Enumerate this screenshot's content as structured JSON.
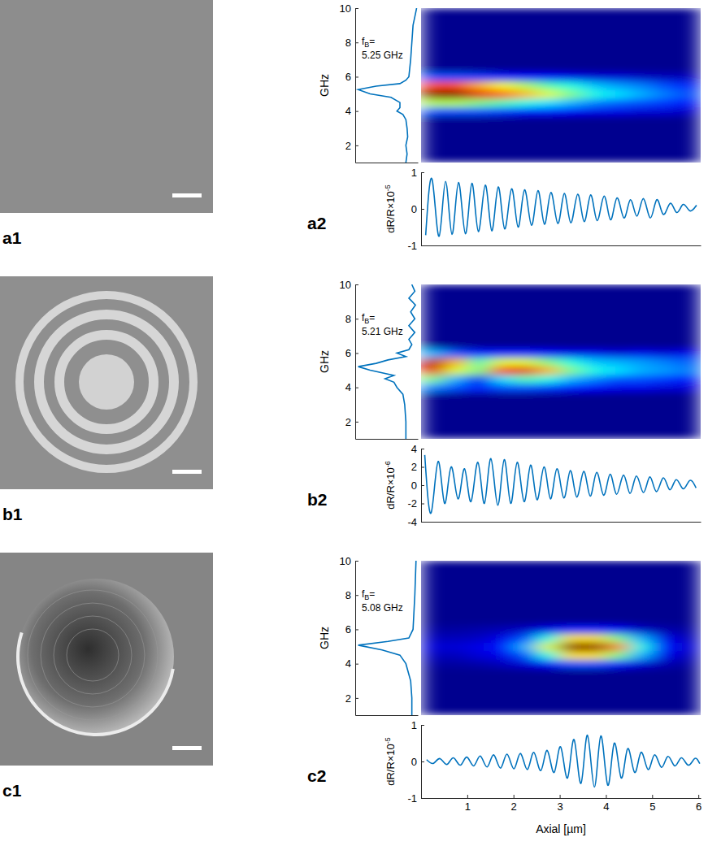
{
  "images": [
    {
      "label": "a1"
    },
    {
      "label": "b1"
    },
    {
      "label": "c1"
    }
  ],
  "chart_data": [
    {
      "type": "line",
      "ylabel": "GHz",
      "color": "#0072bd",
      "xlim": [
        1.05,
        0
      ],
      "ylim": [
        1,
        10
      ],
      "yticks": [
        2,
        4,
        6,
        8,
        10
      ],
      "tick_labels": "y",
      "annotation": {
        "symbol": "f",
        "subscript": "B",
        "tail": "=",
        "line2": "5.25 GHz"
      },
      "y": [
        1,
        1.5,
        2,
        2.5,
        3,
        3.5,
        3.8,
        4,
        4.2,
        4.5,
        4.8,
        5,
        5.25,
        5.45,
        5.6,
        5.8,
        6,
        7,
        8,
        9,
        9.5,
        10
      ],
      "x": [
        0.2,
        0.18,
        0.2,
        0.17,
        0.18,
        0.2,
        0.25,
        0.35,
        0.3,
        0.3,
        0.45,
        0.8,
        1.0,
        0.7,
        0.3,
        0.2,
        0.15,
        0.12,
        0.1,
        0.08,
        0.05,
        0.02
      ]
    },
    {
      "type": "heatmap",
      "xlim": [
        0,
        6.05
      ],
      "ylim": [
        1,
        10
      ],
      "zlim": [
        0,
        1
      ],
      "tick_labels": false,
      "x": [
        0.25,
        0.75,
        1.25,
        1.75,
        2.25,
        2.75,
        3.25,
        3.75,
        4.25,
        4.75,
        5.25,
        5.75
      ],
      "y": [
        4,
        4.5,
        5,
        5.5,
        6
      ],
      "cells": [
        [
          0.2,
          0.2,
          0.2,
          0.18,
          0.15,
          0.15,
          0.12,
          0.1,
          0.1,
          0.08,
          0.08,
          0.06
        ],
        [
          0.55,
          0.55,
          0.5,
          0.45,
          0.4,
          0.35,
          0.3,
          0.25,
          0.22,
          0.2,
          0.18,
          0.15
        ],
        [
          1.0,
          1.0,
          0.9,
          0.8,
          0.7,
          0.6,
          0.5,
          0.4,
          0.35,
          0.3,
          0.25,
          0.2
        ],
        [
          0.8,
          0.8,
          0.7,
          0.62,
          0.55,
          0.45,
          0.4,
          0.32,
          0.28,
          0.25,
          0.2,
          0.16
        ],
        [
          0.2,
          0.2,
          0.18,
          0.15,
          0.13,
          0.12,
          0.1,
          0.08,
          0.08,
          0.06,
          0.05,
          0.05
        ]
      ]
    },
    {
      "type": "line",
      "panel_label": "a2",
      "ylabel": {
        "text": "dR/R×10",
        "superscript": "-5"
      },
      "color": "#0072bd",
      "xlim": [
        0,
        6.05
      ],
      "ylim": [
        -1,
        1
      ],
      "yticks": [
        -1,
        0,
        1
      ],
      "tick_labels": "y",
      "x": [
        0.1,
        0.24,
        0.39,
        0.53,
        0.67,
        0.81,
        0.96,
        1.1,
        1.24,
        1.39,
        1.53,
        1.67,
        1.81,
        1.96,
        2.1,
        2.24,
        2.39,
        2.53,
        2.67,
        2.81,
        2.96,
        3.1,
        3.24,
        3.39,
        3.53,
        3.67,
        3.81,
        3.96,
        4.1,
        4.24,
        4.39,
        4.53,
        4.67,
        4.81,
        4.96,
        5.1,
        5.24,
        5.39,
        5.53,
        5.67,
        5.81,
        5.96
      ],
      "values": [
        -0.72,
        0.8,
        -0.75,
        0.75,
        -0.7,
        0.72,
        -0.68,
        0.7,
        -0.62,
        0.65,
        -0.6,
        0.6,
        -0.55,
        0.55,
        -0.5,
        0.52,
        -0.45,
        0.5,
        -0.42,
        0.45,
        -0.4,
        0.42,
        -0.38,
        0.4,
        -0.35,
        0.38,
        -0.32,
        0.35,
        -0.3,
        0.3,
        -0.25,
        0.25,
        -0.2,
        0.28,
        -0.25,
        0.25,
        -0.15,
        0.15,
        -0.1,
        0.12,
        -0.05,
        0.1
      ]
    },
    {
      "type": "line",
      "ylabel": "GHz",
      "color": "#0072bd",
      "xlim": [
        1.05,
        0
      ],
      "ylim": [
        1,
        10
      ],
      "yticks": [
        2,
        4,
        6,
        8,
        10
      ],
      "tick_labels": "y",
      "annotation": {
        "symbol": "f",
        "subscript": "B",
        "tail": "=",
        "line2": "5.21 GHz"
      },
      "y": [
        1,
        2,
        3,
        3.6,
        4,
        4.3,
        4.5,
        4.7,
        5,
        5.21,
        5.4,
        5.6,
        5.8,
        6,
        6.2,
        6.5,
        6.8,
        7.2,
        7.6,
        8,
        8.4,
        8.8,
        9.2,
        9.6,
        10
      ],
      "x": [
        0.2,
        0.2,
        0.22,
        0.25,
        0.35,
        0.4,
        0.55,
        0.4,
        0.8,
        1.0,
        0.7,
        0.5,
        0.2,
        0.35,
        0.15,
        0.1,
        0.15,
        0.05,
        0.15,
        0.05,
        0.12,
        0.04,
        0.15,
        0.05,
        0.1
      ]
    },
    {
      "type": "heatmap",
      "xlim": [
        0,
        6.05
      ],
      "ylim": [
        1,
        10
      ],
      "zlim": [
        0,
        1
      ],
      "tick_labels": false,
      "x": [
        0.25,
        0.75,
        1.25,
        1.75,
        2.25,
        2.75,
        3.25,
        3.75,
        4.25,
        4.75,
        5.25,
        5.75
      ],
      "y": [
        4,
        4.5,
        5,
        5.5,
        6
      ],
      "cells": [
        [
          0.25,
          0.2,
          0.15,
          0.2,
          0.2,
          0.18,
          0.15,
          0.12,
          0.1,
          0.1,
          0.08,
          0.08
        ],
        [
          0.5,
          0.3,
          0.1,
          0.35,
          0.45,
          0.4,
          0.3,
          0.25,
          0.2,
          0.2,
          0.18,
          0.15
        ],
        [
          0.9,
          0.6,
          0.5,
          0.85,
          0.9,
          0.7,
          0.5,
          0.4,
          0.35,
          0.3,
          0.28,
          0.25
        ],
        [
          0.95,
          0.7,
          0.45,
          0.6,
          0.6,
          0.5,
          0.4,
          0.32,
          0.3,
          0.28,
          0.25,
          0.22
        ],
        [
          0.3,
          0.2,
          0.15,
          0.15,
          0.15,
          0.12,
          0.1,
          0.1,
          0.08,
          0.1,
          0.08,
          0.1
        ]
      ]
    },
    {
      "type": "line",
      "panel_label": "b2",
      "ylabel": {
        "text": "dR/R×10",
        "superscript": "-6"
      },
      "color": "#0072bd",
      "xlim": [
        0,
        6.05
      ],
      "ylim": [
        -4,
        4
      ],
      "yticks": [
        -4,
        -2,
        0,
        2,
        4
      ],
      "tick_labels": "y",
      "x": [
        0.08,
        0.22,
        0.37,
        0.51,
        0.65,
        0.8,
        0.94,
        1.08,
        1.23,
        1.37,
        1.51,
        1.66,
        1.8,
        1.94,
        2.08,
        2.23,
        2.37,
        2.51,
        2.66,
        2.8,
        2.94,
        3.09,
        3.23,
        3.37,
        3.52,
        3.66,
        3.8,
        3.95,
        4.09,
        4.23,
        4.38,
        4.52,
        4.66,
        4.81,
        4.95,
        5.09,
        5.24,
        5.38,
        5.52,
        5.67,
        5.81,
        5.95
      ],
      "values": [
        3.3,
        -3,
        2.6,
        -2,
        2,
        -1.5,
        1.8,
        -1.8,
        2.5,
        -2,
        2.9,
        -2.2,
        2.8,
        -2,
        2.5,
        -1.8,
        2.2,
        -1.6,
        2,
        -1.5,
        1.8,
        -1.4,
        1.6,
        -1.3,
        1.5,
        -1.2,
        1.4,
        -1.1,
        1.2,
        -1,
        1.1,
        -0.9,
        1,
        -0.8,
        0.9,
        -0.7,
        0.8,
        -0.5,
        0.6,
        -0.4,
        0.5,
        -0.3
      ]
    },
    {
      "type": "line",
      "ylabel": "GHz",
      "color": "#0072bd",
      "xlim": [
        1.05,
        0
      ],
      "ylim": [
        1,
        10
      ],
      "yticks": [
        2,
        4,
        6,
        8,
        10
      ],
      "tick_labels": "y",
      "annotation": {
        "symbol": "f",
        "subscript": "B",
        "tail": "=",
        "line2": "5.08 GHz"
      },
      "y": [
        1,
        2,
        3,
        4,
        4.5,
        4.8,
        5.08,
        5.3,
        5.5,
        6,
        8,
        10
      ],
      "x": [
        0.1,
        0.1,
        0.12,
        0.2,
        0.3,
        0.6,
        1.0,
        0.5,
        0.15,
        0.08,
        0.05,
        0.03
      ]
    },
    {
      "type": "heatmap",
      "xlim": [
        0,
        6.05
      ],
      "ylim": [
        1,
        10
      ],
      "zlim": [
        0,
        1
      ],
      "tick_labels": false,
      "x": [
        0.25,
        0.75,
        1.25,
        1.75,
        2.25,
        2.75,
        3.25,
        3.75,
        4.25,
        4.75,
        5.25,
        5.75
      ],
      "y": [
        4,
        4.5,
        5,
        5.5,
        6
      ],
      "cells": [
        [
          0.02,
          0.02,
          0.03,
          0.05,
          0.08,
          0.12,
          0.2,
          0.2,
          0.15,
          0.08,
          0.04,
          0.02
        ],
        [
          0.05,
          0.05,
          0.08,
          0.1,
          0.2,
          0.4,
          0.65,
          0.65,
          0.5,
          0.3,
          0.1,
          0.05
        ],
        [
          0.08,
          0.08,
          0.1,
          0.15,
          0.3,
          0.6,
          1.0,
          1.0,
          0.75,
          0.4,
          0.15,
          0.08
        ],
        [
          0.05,
          0.05,
          0.06,
          0.1,
          0.2,
          0.4,
          0.65,
          0.65,
          0.5,
          0.3,
          0.1,
          0.05
        ],
        [
          0.02,
          0.02,
          0.03,
          0.04,
          0.06,
          0.1,
          0.15,
          0.15,
          0.12,
          0.06,
          0.03,
          0.02
        ]
      ]
    },
    {
      "type": "line",
      "panel_label": "c2",
      "ylabel": {
        "text": "dR/R×10",
        "superscript": "-5"
      },
      "xlabel": "Axial [µm]",
      "color": "#0072bd",
      "xlim": [
        0,
        6.05
      ],
      "ylim": [
        -1,
        1
      ],
      "yticks": [
        -1,
        0,
        1
      ],
      "xticks": [
        1,
        2,
        3,
        4,
        5,
        6
      ],
      "tick_labels": true,
      "x": [
        0.12,
        0.27,
        0.41,
        0.56,
        0.7,
        0.85,
        0.99,
        1.14,
        1.28,
        1.43,
        1.57,
        1.72,
        1.86,
        2.01,
        2.15,
        2.3,
        2.44,
        2.59,
        2.73,
        2.88,
        3.02,
        3.17,
        3.31,
        3.46,
        3.6,
        3.75,
        3.89,
        4.04,
        4.18,
        4.33,
        4.47,
        4.62,
        4.76,
        4.91,
        5.05,
        5.2,
        5.34,
        5.49,
        5.63,
        5.78,
        5.92,
        6.03
      ],
      "values": [
        0.05,
        -0.05,
        0.08,
        -0.08,
        0.1,
        -0.1,
        0.12,
        -0.12,
        0.15,
        -0.15,
        0.18,
        -0.18,
        0.2,
        -0.2,
        0.22,
        -0.22,
        0.25,
        -0.25,
        0.3,
        -0.3,
        0.4,
        -0.45,
        0.6,
        -0.6,
        0.72,
        -0.7,
        0.7,
        -0.65,
        0.5,
        -0.45,
        0.35,
        -0.3,
        0.25,
        -0.22,
        0.18,
        -0.16,
        0.14,
        -0.12,
        0.1,
        -0.1,
        0.08,
        -0.06
      ]
    }
  ]
}
